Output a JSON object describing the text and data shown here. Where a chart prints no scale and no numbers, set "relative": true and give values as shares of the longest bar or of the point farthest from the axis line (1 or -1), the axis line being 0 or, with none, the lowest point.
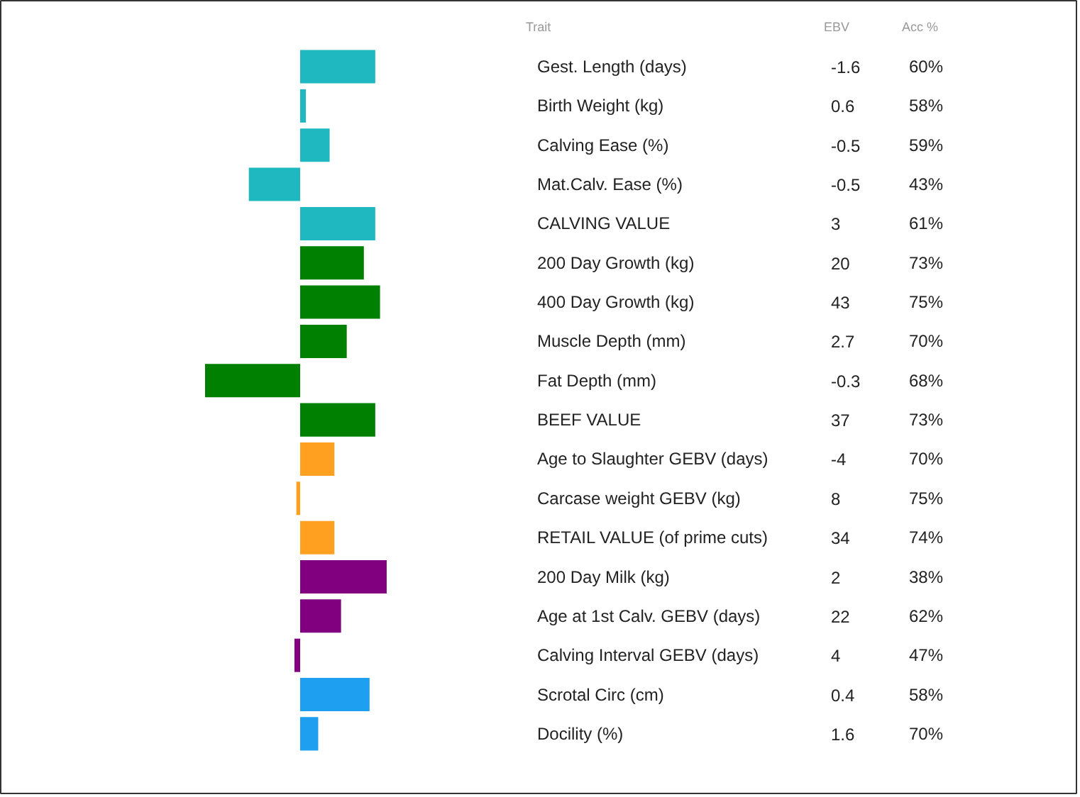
{
  "chart_data": {
    "type": "bar",
    "orientation": "horizontal",
    "relative": true,
    "categories": [
      "Gest. Length (days)",
      "Birth Weight (kg)",
      "Calving Ease (%)",
      "Mat.Calv. Ease (%)",
      "CALVING VALUE",
      "200 Day Growth (kg)",
      "400 Day Growth (kg)",
      "Muscle Depth (mm)",
      "Fat Depth (mm)",
      "BEEF VALUE",
      "Age to Slaughter GEBV (days)",
      "Carcase weight GEBV (kg)",
      "RETAIL VALUE (of prime cuts)",
      "200 Day Milk (kg)",
      "Age at 1st Calv. GEBV (days)",
      "Calving Interval GEBV (days)",
      "Scrotal Circ (cm)",
      "Docility (%)"
    ],
    "values": [
      0.79,
      0.06,
      0.31,
      -0.54,
      0.79,
      0.67,
      0.84,
      0.49,
      -1,
      0.79,
      0.36,
      -0.04,
      0.36,
      0.91,
      0.43,
      -0.06,
      0.73,
      0.19
    ],
    "colors": [
      "#20b8c0",
      "#20b8c0",
      "#20b8c0",
      "#20b8c0",
      "#20b8c0",
      "#008000",
      "#008000",
      "#008000",
      "#008000",
      "#008000",
      "#ffa020",
      "#ffa020",
      "#ffa020",
      "#800080",
      "#800080",
      "#800080",
      "#1e9ff0",
      "#1e9ff0"
    ],
    "annotations": [
      "Trait",
      "EBV",
      "Acc %",
      "-1.6",
      "0.6",
      "-0.5",
      "-0.5",
      "3",
      "20",
      "43",
      "2.7",
      "-0.3",
      "37",
      "-4",
      "8",
      "34",
      "2",
      "22",
      "4",
      "0.4",
      "1.6",
      "60%",
      "58%",
      "59%",
      "43%",
      "61%",
      "73%",
      "75%",
      "70%",
      "68%",
      "73%",
      "70%",
      "75%",
      "74%",
      "38%",
      "62%",
      "47%",
      "58%",
      "70%"
    ]
  }
}
